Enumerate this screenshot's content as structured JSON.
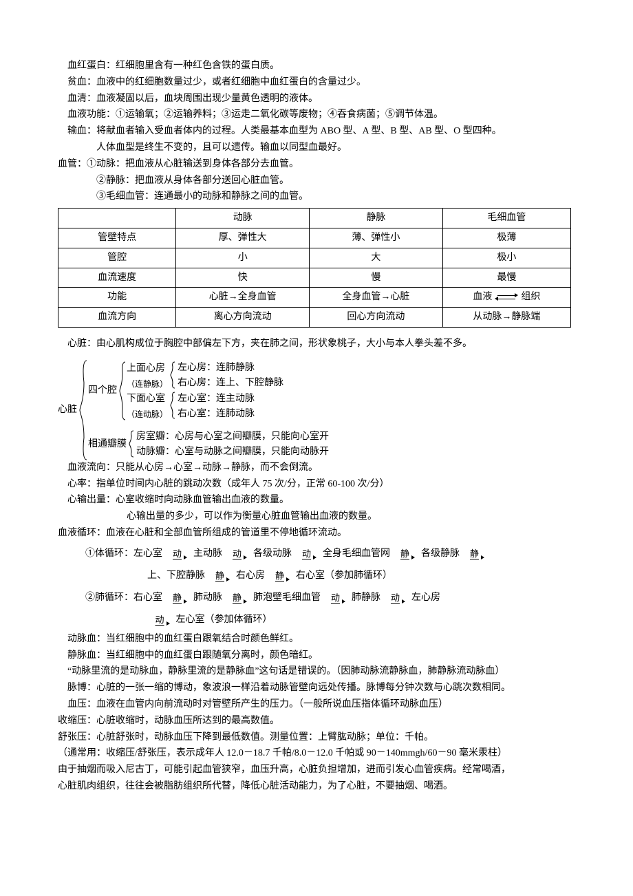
{
  "defs": {
    "l1": "血红蛋白：红细胞里含有一种红色含铁的蛋白质。",
    "l2": "贫血：血液中的红细胞数量过少，或者红细胞中血红蛋白的含量过少。",
    "l3": "血清：血液凝固以后，血块周围出现少量黄色透明的液体。",
    "l4": "血液功能：①运输氧；②运输养料；③运走二氧化碳等废物；④吞食病菌；⑤调节体温。",
    "l5": "输血：将献血者输入受血者体内的过程。人类最基本血型为 ABO 型、A 型、B 型、AB 型、O 型四种。",
    "l6": "人体血型是终生不变的，且可以遗传。输血以同型血最好。",
    "l7": "血管：①动脉：把血液从心脏输送到身体各部分去血管。",
    "l8": "②静脉：把血液从身体各部分送回心脏血管。",
    "l9": "③毛细血管：连通最小的动脉和静脉之间的血管。"
  },
  "table": {
    "headers": [
      "",
      "动脉",
      "静脉",
      "毛细血管"
    ],
    "rows": [
      [
        "管壁特点",
        "厚、弹性大",
        "薄、弹性小",
        "极薄"
      ],
      [
        "管腔",
        "小",
        "大",
        "极小"
      ],
      [
        "血流速度",
        "快",
        "慢",
        "最慢"
      ],
      [
        "功能",
        "心脏→全身血管",
        "全身血管→心脏",
        "__BLOOD_TISSUE__"
      ],
      [
        "血流方向",
        "离心方向流动",
        "回心方向流动",
        "从动脉→静脉端"
      ]
    ],
    "blood_label": "血液",
    "tissue_label": "组织"
  },
  "heart_intro": "心脏：由心肌构成位于胸腔中部偏左下方，夹在肺之间，形状象桃子，大小与本人拳头差不多。",
  "heart_tree": {
    "root": "心脏",
    "b1": {
      "label": "四个腔",
      "c1": {
        "t1": "上面心房",
        "t2": "（连静脉）",
        "leaf1": "左心房：连肺静脉",
        "leaf2": "右心房：连上、下腔静脉"
      },
      "c2": {
        "t1": "下面心室",
        "t2": "（连动脉）",
        "leaf1": "左心室：连主动脉",
        "leaf2": "右心室：连肺动脉"
      }
    },
    "b2": {
      "label": "相通瓣膜",
      "leaf1": "房室瓣：心房与心室之间瓣膜，只能向心室开",
      "leaf2": "动脉瓣：心室与动脉之间瓣膜，只能向动脉开"
    }
  },
  "mid": {
    "m1": "血液流向：只能从心房→心室→动脉→静脉，而不会倒流。",
    "m2": "心率：指单位时间内心脏的跳动次数（成年人 75 次/分，正常 60-100 次/分）",
    "m3": "心输出量：心室收缩时向动脉血管输出血液的数量。",
    "m4": "心输出量的多少，可以作为衡量心脏血管输出血液的数量。",
    "m5": "血液循环：血液在心脏和全部血管所组成的管道里不停地循环流动。"
  },
  "circ": {
    "arrow_dong": "动",
    "arrow_jing": "静",
    "sys_prefix": "①体循环：左心室",
    "sys_a": "主动脉",
    "sys_b": "各级动脉",
    "sys_c": "全身毛细血管网",
    "sys_d": "各级静脉",
    "sys_e1": "上、下腔静脉",
    "sys_e2": "右心房",
    "sys_e3": "右心室（参加肺循环）",
    "pul_prefix": "②肺循环：右心室",
    "pul_a": "肺动脉",
    "pul_b": "肺泡壁毛细血管",
    "pul_c": "肺静脉",
    "pul_d": "左心房",
    "pul_e": "左心室（参加体循环）"
  },
  "tail": {
    "t1": "动脉血：当红细胞中的血红蛋白跟氧结合时颜色鲜红。",
    "t2": "静脉血：当红细胞中的血红蛋白跟随氧分离时，颜色暗红。",
    "t3": "“动脉里流的是动脉血，静脉里流的是静脉血”这句话是错误的。（因肺动脉流静脉血，肺静脉流动脉血）",
    "t4": "脉博：心脏的一张一缩的博动，象波浪一样沿着动脉管壁向远处传播。脉博每分钟次数与心跳次数相同。",
    "t5": "血压：血液在血管内向前流动时对管壁所产生的压力。（一般所说血压指体循环动脉血压）",
    "t6": "收缩压：心脏收缩时，动脉血压所达到的最高数值。",
    "t7": "舒张压：心脏舒张时，动脉血压下降到最低数值。测量位置：上臂肱动脉；单位：千帕。",
    "t8": "（通常用：收缩压/舒张压，表示成年人 12.0－18.7 千帕/8.0－12.0 千帕或 90－140mmgh/60－90 毫米汞柱）",
    "t9": "由于抽烟而吸入尼古丁，可能引起血管狭窄，血压升高，心脏负担增加，进而引发心血管疾病。经常喝酒，",
    "t10": "心脏肌肉组织，往往会被脂肪组织所代替，降低心脏活动能力，为了心脏，不要抽烟、喝酒。"
  },
  "style": {
    "font_size_pt": 10.5,
    "text_color": "#000000",
    "background": "#ffffff",
    "table_border_color": "#000000"
  }
}
